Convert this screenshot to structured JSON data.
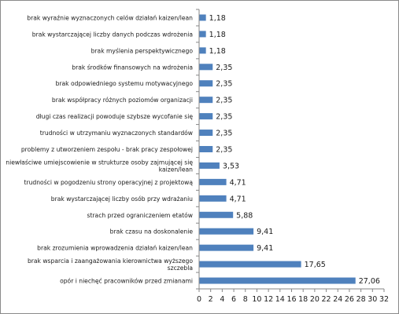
{
  "chart_data": {
    "type": "bar",
    "orientation": "horizontal",
    "categories": [
      "brak wyraźnie wyznaczonych celów działań kaizen/lean",
      "brak wystarczającej liczby danych podczas wdrożenia",
      "brak myślenia perspektywicznego",
      "brak środków finansowych na wdrożenia",
      "brak odpowiedniego systemu motywacyjnego",
      "brak współpracy różnych poziomów organizacji",
      "długi czas realizacji powoduje szybsze wycofanie się",
      "trudności w utrzymaniu wyznaczonych standardów",
      "problemy z utworzeniem zespołu - brak pracy zespołowej",
      "niewłaściwe umiejscowienie w strukturze osoby zajmującej się kaizen/lean",
      "trudności w pogodzeniu strony operacyjnej z projektową",
      "brak wystarczającej liczby osób przy wdrażaniu",
      "strach przed ograniczeniem etatów",
      "brak czasu na doskonalenie",
      "brak zrozumienia wprowadzenia działań kaizen/lean",
      "brak wsparcia i zaangażowania kierownictwa wyższego szczebla",
      "opór i niechęć pracowników przed zmianami"
    ],
    "values": [
      1.18,
      1.18,
      1.18,
      2.35,
      2.35,
      2.35,
      2.35,
      2.35,
      2.35,
      3.53,
      4.71,
      4.71,
      5.88,
      9.41,
      9.41,
      17.65,
      27.06
    ],
    "value_labels": [
      "1,18",
      "1,18",
      "1,18",
      "2,35",
      "2,35",
      "2,35",
      "2,35",
      "2,35",
      "2,35",
      "3,53",
      "4,71",
      "4,71",
      "5,88",
      "9,41",
      "9,41",
      "17,65",
      "27,06"
    ],
    "xlim": [
      0,
      32
    ],
    "xticks": [
      0,
      2,
      4,
      6,
      8,
      10,
      12,
      14,
      16,
      18,
      20,
      22,
      24,
      26,
      28,
      30,
      32
    ],
    "title": "",
    "xlabel": "",
    "ylabel": "",
    "grid": false,
    "legend": "none",
    "bar_color": "#4f81bd"
  }
}
